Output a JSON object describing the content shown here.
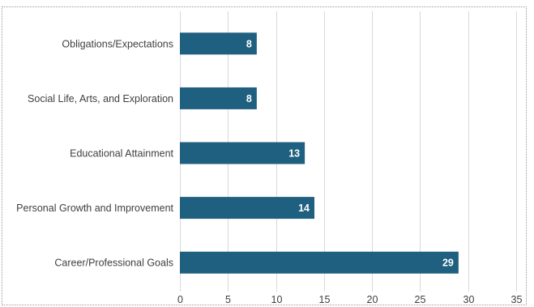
{
  "chart_data": {
    "type": "bar",
    "orientation": "horizontal",
    "categories": [
      "Obligations/Expectations",
      "Social Life, Arts, and Exploration",
      "Educational Attainment",
      "Personal Growth and Improvement",
      "Career/Professional Goals"
    ],
    "values": [
      8,
      8,
      13,
      14,
      29
    ],
    "title": "",
    "xlabel": "",
    "ylabel": "",
    "xlim": [
      0,
      35
    ],
    "xticks": [
      0,
      5,
      10,
      15,
      20,
      25,
      30,
      35
    ],
    "grid": "vertical",
    "data_labels": true,
    "bar_color": "#1f5f7f",
    "data_label_color": "#ffffff"
  }
}
